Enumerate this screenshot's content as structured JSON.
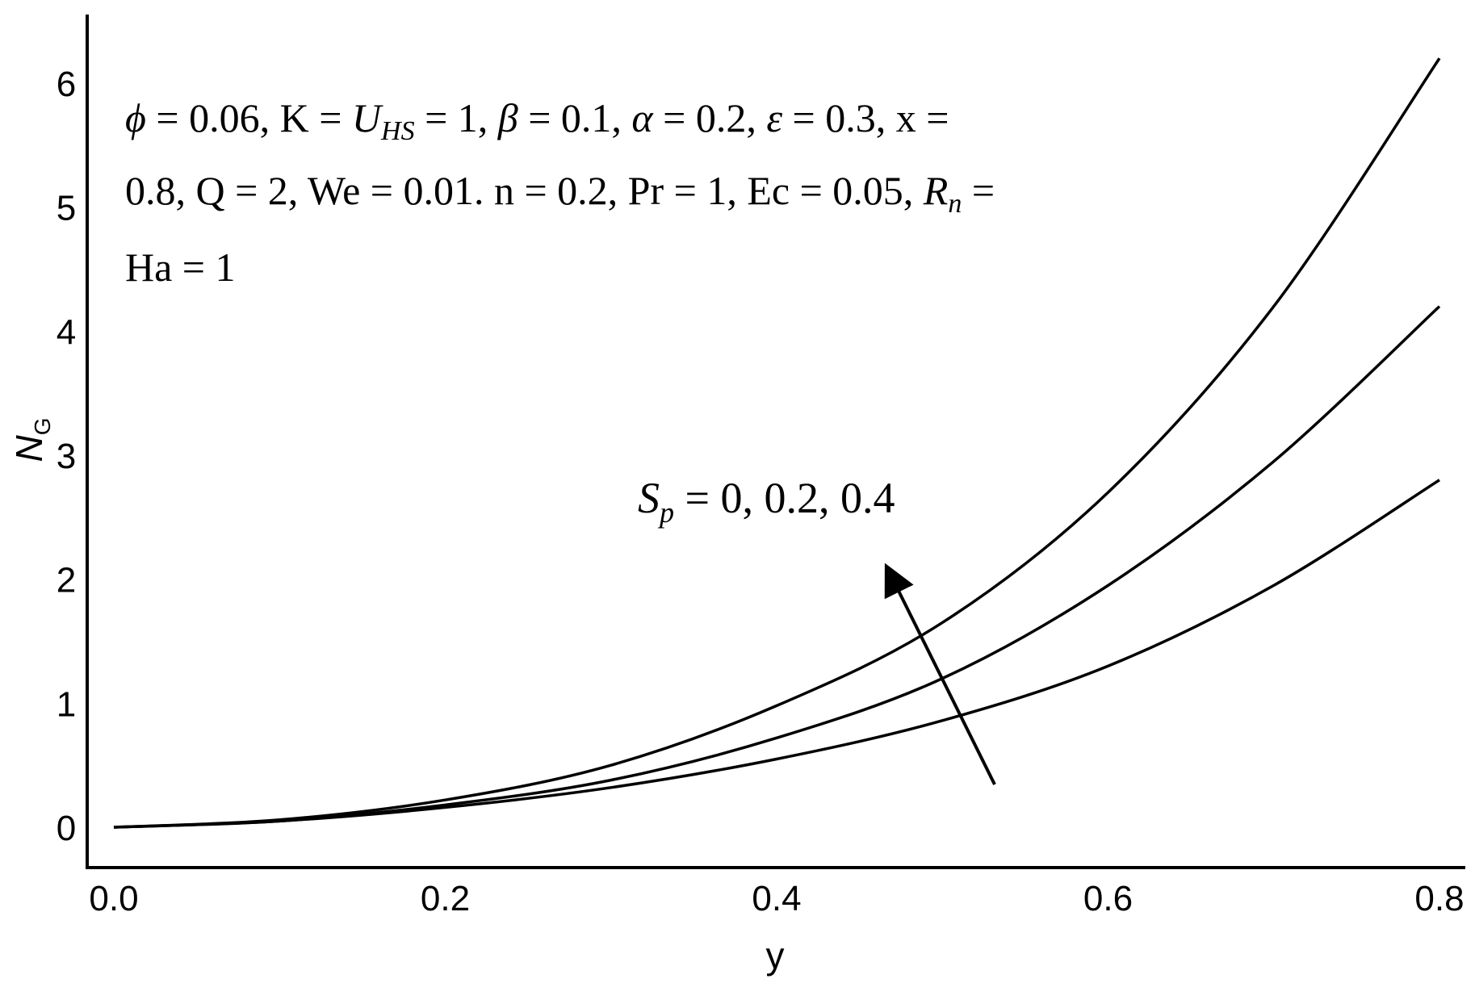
{
  "chart_data": {
    "type": "line",
    "xlabel": "y",
    "ylabel_main": "N",
    "ylabel_sub": "G",
    "xlim": [
      0.0,
      0.8
    ],
    "ylim": [
      0,
      6
    ],
    "xticks": [
      "0.0",
      "0.2",
      "0.4",
      "0.6",
      "0.8"
    ],
    "yticks": [
      "0",
      "1",
      "2",
      "3",
      "4",
      "5",
      "6"
    ],
    "series": [
      {
        "values": [
          [
            0.0,
            0
          ],
          [
            0.1,
            0.05
          ],
          [
            0.2,
            0.16
          ],
          [
            0.3,
            0.32
          ],
          [
            0.4,
            0.55
          ],
          [
            0.5,
            0.86
          ],
          [
            0.6,
            1.3
          ],
          [
            0.7,
            1.95
          ],
          [
            0.8,
            2.8
          ]
        ]
      },
      {
        "values": [
          [
            0.0,
            0
          ],
          [
            0.1,
            0.05
          ],
          [
            0.2,
            0.18
          ],
          [
            0.3,
            0.38
          ],
          [
            0.4,
            0.72
          ],
          [
            0.5,
            1.2
          ],
          [
            0.6,
            1.95
          ],
          [
            0.7,
            2.95
          ],
          [
            0.8,
            4.2
          ]
        ]
      },
      {
        "values": [
          [
            0.0,
            0
          ],
          [
            0.1,
            0.06
          ],
          [
            0.2,
            0.22
          ],
          [
            0.3,
            0.5
          ],
          [
            0.4,
            0.98
          ],
          [
            0.5,
            1.65
          ],
          [
            0.6,
            2.7
          ],
          [
            0.7,
            4.2
          ],
          [
            0.8,
            6.2
          ]
        ]
      }
    ],
    "params_line1": {
      "phi": "ϕ",
      "t1": " = 0.06, K ",
      "eq1": "= ",
      "U": "U",
      "Usub": "HS",
      "t2": " = ",
      "t3": "1, ",
      "beta": "β",
      "t4": " = 0.1, ",
      "alpha": "α",
      "t5": " = 0.2, ",
      "eps": "ε",
      "t6": " = 0.3, x ="
    },
    "params_line2": {
      "t1": "0.8, Q = 2, We = 0.01. n = 0.2, Pr = 1, Ec = 0.05, ",
      "R": "R",
      "Rsub": "n",
      "t2": " ="
    },
    "params_line3": "Ha = 1",
    "arrow_label": {
      "S": "S",
      "sub": "p",
      "text": " = 0, 0.2, 0.4"
    }
  }
}
